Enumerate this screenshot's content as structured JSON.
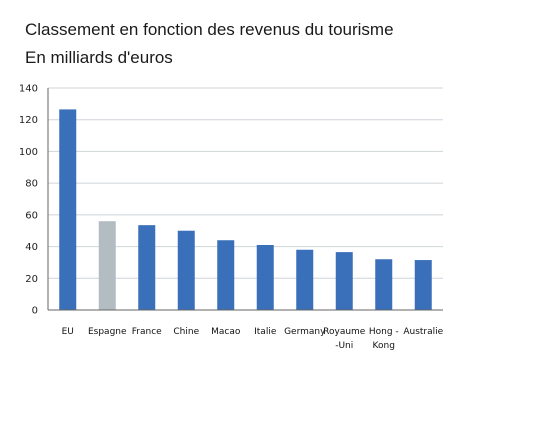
{
  "chart_data": {
    "type": "bar",
    "title": "Classement en fonction des revenus du tourisme",
    "subtitle": "En milliards d'euros",
    "categories": [
      "EU",
      "Espagne",
      "France",
      "Chine",
      "Macao",
      "Italie",
      "Germany",
      "Royaume-Uni",
      "Hong-Kong",
      "Australie"
    ],
    "category_lines": [
      [
        "EU"
      ],
      [
        "Espagne"
      ],
      [
        "France"
      ],
      [
        "Chine"
      ],
      [
        "Macao"
      ],
      [
        "Italie"
      ],
      [
        "Germany"
      ],
      [
        "Royaume",
        "-Uni"
      ],
      [
        "Hong -",
        "Kong"
      ],
      [
        "Australie"
      ]
    ],
    "values": [
      126.5,
      56,
      53.5,
      50,
      44,
      41,
      38,
      36.5,
      32,
      31.5
    ],
    "highlight_index": 1,
    "yticks": [
      0,
      20,
      40,
      60,
      80,
      100,
      120,
      140
    ],
    "ylim": [
      0,
      140
    ],
    "xlabel": "",
    "ylabel": "",
    "grid": true,
    "colors": {
      "bar": "#3a6fb9",
      "highlight": "#b3bcc0",
      "grid": "#cfd4d8",
      "axis": "#666666"
    }
  }
}
